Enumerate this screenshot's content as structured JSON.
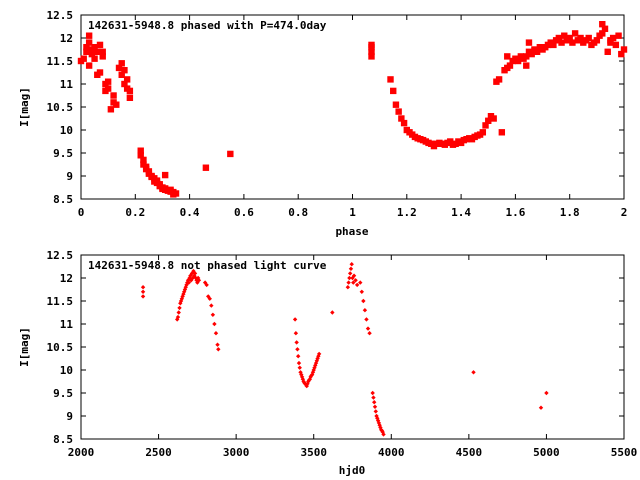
{
  "colors": {
    "points": "#ff0000",
    "axes": "#000000",
    "background": "#ffffff"
  },
  "chart_data": [
    {
      "type": "scatter",
      "title": "142631-5948.8 phased with P=474.0day",
      "xlabel": "phase",
      "ylabel": "I[mag]",
      "xlim": [
        0,
        2
      ],
      "ylim": [
        12.5,
        8.5
      ],
      "y_inverted": true,
      "grid": false,
      "xticks": [
        "0",
        "0.2",
        "0.4",
        "0.6",
        "0.8",
        "1",
        "1.2",
        "1.4",
        "1.6",
        "1.8",
        "2"
      ],
      "yticks": [
        "8.5",
        "9",
        "9.5",
        "10",
        "10.5",
        "11",
        "11.5",
        "12",
        "12.5"
      ],
      "series": [
        {
          "points": [
            [
              0.0,
              11.5
            ],
            [
              0.01,
              11.55
            ],
            [
              0.02,
              11.7
            ],
            [
              0.02,
              11.8
            ],
            [
              0.03,
              11.4
            ],
            [
              0.03,
              11.9
            ],
            [
              0.03,
              12.05
            ],
            [
              0.04,
              11.65
            ],
            [
              0.04,
              11.75
            ],
            [
              0.05,
              11.8
            ],
            [
              0.05,
              11.55
            ],
            [
              0.06,
              11.2
            ],
            [
              0.06,
              11.7
            ],
            [
              0.07,
              11.25
            ],
            [
              0.07,
              11.85
            ],
            [
              0.08,
              11.7
            ],
            [
              0.08,
              11.6
            ],
            [
              0.09,
              11.0
            ],
            [
              0.09,
              10.85
            ],
            [
              0.1,
              10.9
            ],
            [
              0.1,
              11.05
            ],
            [
              0.11,
              10.45
            ],
            [
              0.12,
              10.6
            ],
            [
              0.12,
              10.75
            ],
            [
              0.13,
              10.55
            ],
            [
              0.14,
              11.35
            ],
            [
              0.15,
              11.45
            ],
            [
              0.15,
              11.2
            ],
            [
              0.16,
              11.3
            ],
            [
              0.16,
              11.0
            ],
            [
              0.17,
              10.9
            ],
            [
              0.17,
              11.1
            ],
            [
              0.18,
              10.7
            ],
            [
              0.18,
              10.85
            ],
            [
              0.22,
              9.55
            ],
            [
              0.22,
              9.45
            ],
            [
              0.23,
              9.35
            ],
            [
              0.23,
              9.25
            ],
            [
              0.24,
              9.15
            ],
            [
              0.24,
              9.2
            ],
            [
              0.25,
              9.05
            ],
            [
              0.25,
              9.1
            ],
            [
              0.26,
              8.98
            ],
            [
              0.26,
              9.0
            ],
            [
              0.27,
              8.95
            ],
            [
              0.27,
              8.88
            ],
            [
              0.28,
              8.85
            ],
            [
              0.28,
              8.9
            ],
            [
              0.29,
              8.82
            ],
            [
              0.29,
              8.78
            ],
            [
              0.3,
              8.75
            ],
            [
              0.3,
              8.72
            ],
            [
              0.31,
              8.7
            ],
            [
              0.31,
              8.73
            ],
            [
              0.32,
              8.68
            ],
            [
              0.33,
              8.66
            ],
            [
              0.33,
              8.7
            ],
            [
              0.34,
              8.6
            ],
            [
              0.34,
              8.65
            ],
            [
              0.46,
              9.18
            ],
            [
              0.55,
              9.48
            ],
            [
              1.07,
              11.6
            ],
            [
              1.07,
              11.7
            ],
            [
              1.07,
              11.8
            ],
            [
              1.07,
              11.85
            ],
            [
              1.14,
              11.1
            ],
            [
              1.15,
              10.85
            ],
            [
              1.16,
              10.55
            ],
            [
              1.17,
              10.4
            ],
            [
              1.18,
              10.25
            ],
            [
              1.19,
              10.15
            ],
            [
              1.2,
              10.0
            ],
            [
              1.21,
              9.95
            ],
            [
              1.22,
              9.9
            ],
            [
              1.23,
              9.85
            ],
            [
              1.24,
              9.82
            ],
            [
              1.25,
              9.8
            ],
            [
              1.26,
              9.78
            ],
            [
              1.27,
              9.75
            ],
            [
              1.28,
              9.72
            ],
            [
              1.29,
              9.7
            ],
            [
              1.3,
              9.65
            ],
            [
              1.31,
              9.7
            ],
            [
              1.32,
              9.72
            ],
            [
              1.33,
              9.7
            ],
            [
              1.34,
              9.68
            ],
            [
              1.35,
              9.72
            ],
            [
              1.36,
              9.75
            ],
            [
              1.37,
              9.68
            ],
            [
              1.38,
              9.7
            ],
            [
              1.39,
              9.75
            ],
            [
              1.4,
              9.72
            ],
            [
              1.41,
              9.78
            ],
            [
              1.42,
              9.8
            ],
            [
              1.43,
              9.82
            ],
            [
              1.44,
              9.8
            ],
            [
              1.45,
              9.85
            ],
            [
              1.46,
              9.88
            ],
            [
              1.47,
              9.9
            ],
            [
              1.48,
              9.95
            ],
            [
              1.49,
              10.1
            ],
            [
              1.5,
              10.2
            ],
            [
              1.51,
              10.3
            ],
            [
              1.52,
              10.25
            ],
            [
              1.53,
              11.05
            ],
            [
              1.54,
              11.1
            ],
            [
              1.55,
              9.95
            ],
            [
              1.56,
              11.3
            ],
            [
              1.57,
              11.35
            ],
            [
              1.58,
              11.4
            ],
            [
              1.59,
              11.5
            ],
            [
              1.6,
              11.55
            ],
            [
              1.61,
              11.5
            ],
            [
              1.62,
              11.6
            ],
            [
              1.63,
              11.55
            ],
            [
              1.64,
              11.6
            ],
            [
              1.65,
              11.7
            ],
            [
              1.66,
              11.65
            ],
            [
              1.67,
              11.75
            ],
            [
              1.68,
              11.7
            ],
            [
              1.69,
              11.8
            ],
            [
              1.7,
              11.75
            ],
            [
              1.71,
              11.8
            ],
            [
              1.72,
              11.85
            ],
            [
              1.73,
              11.9
            ],
            [
              1.74,
              11.85
            ],
            [
              1.75,
              11.95
            ],
            [
              1.76,
              12.0
            ],
            [
              1.77,
              11.9
            ],
            [
              1.78,
              12.05
            ],
            [
              1.79,
              11.95
            ],
            [
              1.8,
              12.0
            ],
            [
              1.81,
              11.9
            ],
            [
              1.82,
              12.1
            ],
            [
              1.83,
              11.95
            ],
            [
              1.84,
              12.0
            ],
            [
              1.85,
              11.9
            ],
            [
              1.86,
              11.95
            ],
            [
              1.87,
              12.0
            ],
            [
              1.88,
              11.85
            ],
            [
              1.89,
              11.9
            ],
            [
              1.9,
              11.95
            ],
            [
              1.91,
              12.05
            ],
            [
              1.92,
              12.1
            ],
            [
              1.92,
              12.3
            ],
            [
              1.93,
              12.2
            ],
            [
              1.94,
              11.7
            ],
            [
              1.95,
              11.9
            ],
            [
              1.95,
              11.95
            ],
            [
              1.96,
              12.0
            ],
            [
              1.97,
              11.85
            ],
            [
              1.98,
              12.05
            ],
            [
              1.99,
              11.65
            ],
            [
              2.0,
              11.75
            ],
            [
              1.65,
              11.9
            ],
            [
              1.64,
              11.4
            ],
            [
              1.57,
              11.6
            ],
            [
              0.31,
              9.02
            ],
            [
              0.35,
              8.62
            ]
          ]
        }
      ]
    },
    {
      "type": "scatter",
      "title": "142631-5948.8 not phased light curve",
      "xlabel": "hjd0",
      "ylabel": "I[mag]",
      "xlim": [
        2000,
        5500
      ],
      "ylim": [
        12.5,
        8.5
      ],
      "y_inverted": true,
      "grid": false,
      "xticks": [
        "2000",
        "2500",
        "3000",
        "3500",
        "4000",
        "4500",
        "5000",
        "5500"
      ],
      "yticks": [
        "8.5",
        "9",
        "9.5",
        "10",
        "10.5",
        "11",
        "11.5",
        "12",
        "12.5"
      ],
      "series": [
        {
          "points": [
            [
              2400,
              11.6
            ],
            [
              2400,
              11.7
            ],
            [
              2400,
              11.8
            ],
            [
              2620,
              11.1
            ],
            [
              2625,
              11.15
            ],
            [
              2630,
              11.25
            ],
            [
              2635,
              11.35
            ],
            [
              2640,
              11.45
            ],
            [
              2645,
              11.5
            ],
            [
              2650,
              11.55
            ],
            [
              2655,
              11.6
            ],
            [
              2660,
              11.65
            ],
            [
              2665,
              11.7
            ],
            [
              2670,
              11.75
            ],
            [
              2675,
              11.8
            ],
            [
              2680,
              11.85
            ],
            [
              2685,
              11.9
            ],
            [
              2690,
              11.95
            ],
            [
              2695,
              11.9
            ],
            [
              2700,
              12.0
            ],
            [
              2705,
              12.05
            ],
            [
              2710,
              11.95
            ],
            [
              2715,
              12.1
            ],
            [
              2720,
              12.0
            ],
            [
              2725,
              12.15
            ],
            [
              2730,
              12.05
            ],
            [
              2735,
              12.1
            ],
            [
              2740,
              12.0
            ],
            [
              2745,
              11.95
            ],
            [
              2750,
              11.9
            ],
            [
              2755,
              12.0
            ],
            [
              2760,
              11.95
            ],
            [
              2800,
              11.9
            ],
            [
              2810,
              11.85
            ],
            [
              2820,
              11.6
            ],
            [
              2830,
              11.55
            ],
            [
              2840,
              11.4
            ],
            [
              2850,
              11.2
            ],
            [
              2860,
              11.0
            ],
            [
              2870,
              10.8
            ],
            [
              2880,
              10.55
            ],
            [
              2885,
              10.45
            ],
            [
              3380,
              11.1
            ],
            [
              3385,
              10.8
            ],
            [
              3390,
              10.6
            ],
            [
              3395,
              10.45
            ],
            [
              3400,
              10.3
            ],
            [
              3405,
              10.15
            ],
            [
              3410,
              10.05
            ],
            [
              3415,
              9.95
            ],
            [
              3420,
              9.9
            ],
            [
              3425,
              9.85
            ],
            [
              3430,
              9.8
            ],
            [
              3435,
              9.75
            ],
            [
              3440,
              9.72
            ],
            [
              3445,
              9.7
            ],
            [
              3450,
              9.68
            ],
            [
              3455,
              9.65
            ],
            [
              3460,
              9.7
            ],
            [
              3465,
              9.75
            ],
            [
              3470,
              9.78
            ],
            [
              3475,
              9.8
            ],
            [
              3480,
              9.85
            ],
            [
              3485,
              9.88
            ],
            [
              3490,
              9.9
            ],
            [
              3495,
              9.95
            ],
            [
              3500,
              10.0
            ],
            [
              3505,
              10.05
            ],
            [
              3510,
              10.1
            ],
            [
              3515,
              10.15
            ],
            [
              3520,
              10.2
            ],
            [
              3525,
              10.25
            ],
            [
              3530,
              10.3
            ],
            [
              3535,
              10.35
            ],
            [
              3620,
              11.25
            ],
            [
              3720,
              11.8
            ],
            [
              3725,
              11.9
            ],
            [
              3730,
              12.0
            ],
            [
              3735,
              12.1
            ],
            [
              3740,
              12.2
            ],
            [
              3745,
              12.3
            ],
            [
              3750,
              12.0
            ],
            [
              3755,
              11.9
            ],
            [
              3760,
              12.05
            ],
            [
              3770,
              11.95
            ],
            [
              3780,
              11.85
            ],
            [
              3800,
              11.9
            ],
            [
              3810,
              11.7
            ],
            [
              3820,
              11.5
            ],
            [
              3830,
              11.3
            ],
            [
              3840,
              11.1
            ],
            [
              3850,
              10.9
            ],
            [
              3860,
              10.8
            ],
            [
              3880,
              9.5
            ],
            [
              3885,
              9.4
            ],
            [
              3890,
              9.3
            ],
            [
              3895,
              9.2
            ],
            [
              3900,
              9.1
            ],
            [
              3905,
              9.0
            ],
            [
              3910,
              8.95
            ],
            [
              3915,
              8.9
            ],
            [
              3920,
              8.85
            ],
            [
              3925,
              8.8
            ],
            [
              3930,
              8.75
            ],
            [
              3935,
              8.7
            ],
            [
              3940,
              8.68
            ],
            [
              3945,
              8.65
            ],
            [
              3950,
              8.6
            ],
            [
              4530,
              9.95
            ],
            [
              4965,
              9.18
            ],
            [
              5000,
              9.5
            ]
          ]
        }
      ]
    }
  ]
}
